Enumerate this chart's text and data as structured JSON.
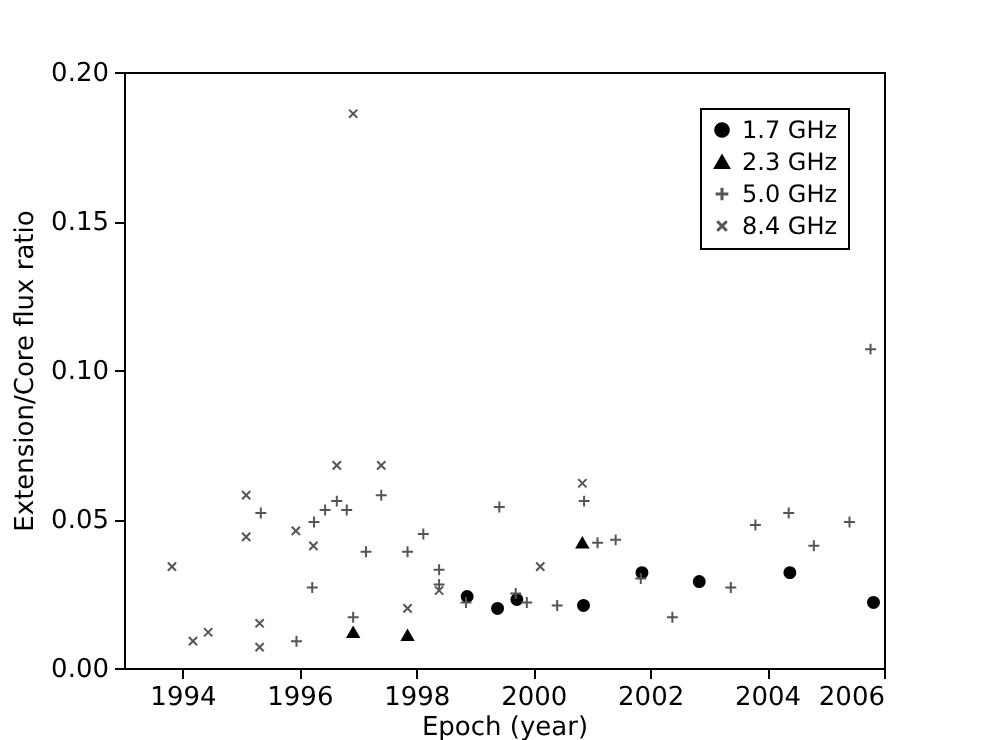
{
  "chart_data": {
    "type": "scatter",
    "xlabel": "Epoch (year)",
    "ylabel": "Extension/Core flux ratio",
    "xlim": [
      1993,
      2006
    ],
    "xticks": [
      1994,
      1996,
      1998,
      2000,
      2002,
      2004,
      2006
    ],
    "ylim": [
      0,
      0.2
    ],
    "yticks": [
      {
        "value": 0,
        "label": "0.00"
      },
      {
        "value": 0.05,
        "label": "0.05"
      },
      {
        "value": 0.1,
        "label": "0.10"
      },
      {
        "value": 0.15,
        "label": "0.15"
      },
      {
        "value": 0.2,
        "label": "0.20"
      }
    ],
    "grid": false,
    "legend": "top right",
    "series": [
      {
        "name": "1.7 GHz",
        "color": "#000000",
        "marker": "circle",
        "x": [
          1998.87,
          1999.39,
          1999.72,
          2000.86,
          2001.86,
          2002.84,
          2004.39,
          2005.82
        ],
        "values": [
          0.024,
          0.02,
          0.023,
          0.021,
          0.032,
          0.029,
          0.032,
          0.022
        ]
      },
      {
        "name": "2.3 GHz",
        "color": "#000000",
        "marker": "triangle",
        "x": [
          1996.92,
          1997.85,
          2000.84
        ],
        "values": [
          0.012,
          0.011,
          0.042
        ]
      },
      {
        "name": "5.0 GHz",
        "color": "#555555",
        "marker": "cross",
        "x": [
          1995.34,
          1995.95,
          1996.22,
          1996.25,
          1996.44,
          1996.64,
          1996.81,
          1996.92,
          1997.14,
          1997.4,
          1997.85,
          1998.12,
          1998.39,
          1998.39,
          1998.85,
          1999.42,
          1999.7,
          1999.89,
          2000.41,
          2000.87,
          2001.1,
          2001.41,
          2001.84,
          2002.38,
          2003.38,
          2003.8,
          2004.37,
          2004.8,
          2005.41,
          2005.77
        ],
        "values": [
          0.052,
          0.009,
          0.027,
          0.049,
          0.053,
          0.056,
          0.053,
          0.017,
          0.039,
          0.058,
          0.039,
          0.045,
          0.033,
          0.028,
          0.022,
          0.054,
          0.025,
          0.022,
          0.021,
          0.056,
          0.042,
          0.043,
          0.03,
          0.017,
          0.027,
          0.048,
          0.052,
          0.041,
          0.049,
          0.107
        ]
      },
      {
        "name": "8.4 GHz",
        "color": "#555555",
        "marker": "x",
        "x": [
          1993.82,
          1994.18,
          1994.44,
          1995.09,
          1995.09,
          1995.32,
          1995.32,
          1995.94,
          1996.24,
          1996.64,
          1996.92,
          1997.4,
          1997.85,
          1998.39,
          2000.12,
          2000.84
        ],
        "values": [
          0.034,
          0.009,
          0.012,
          0.058,
          0.044,
          0.015,
          0.007,
          0.046,
          0.041,
          0.068,
          0.186,
          0.068,
          0.02,
          0.026,
          0.034,
          0.062
        ]
      }
    ]
  }
}
